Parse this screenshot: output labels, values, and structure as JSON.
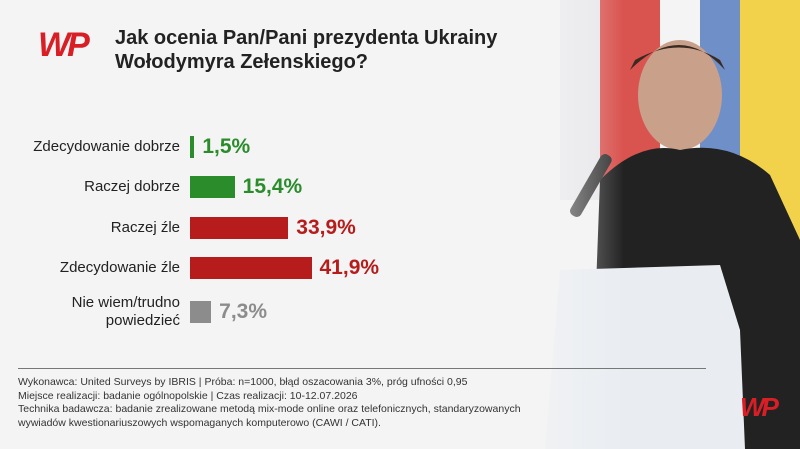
{
  "chart_data": {
    "type": "bar",
    "orientation": "horizontal",
    "title": "Jak ocenia Pan/Pani prezydenta Ukrainy Wołodymyra Zełenskiego?",
    "categories": [
      "Zdecydowanie dobrze",
      "Raczej dobrze",
      "Raczej źle",
      "Zdecydowanie źle",
      "Nie wiem/trudno powiedzieć"
    ],
    "values": [
      1.5,
      15.4,
      33.9,
      41.9,
      7.3
    ],
    "value_labels": [
      "1,5%",
      "15,4%",
      "33,9%",
      "41,9%",
      "7,3%"
    ],
    "colors": [
      "#2a8c2a",
      "#2a8c2a",
      "#b71c1c",
      "#b71c1c",
      "#8c8c8c"
    ]
  },
  "logo": "WP",
  "footnote": [
    "Wykonawca: United Surveys by IBRIS | Próba: n=1000, błąd oszacowania 3%, próg ufności 0,95",
    "Miejsce realizacji: badanie ogólnopolskie | Czas realizacji: 10-12.07.2026",
    "Technika badawcza: badanie zrealizowane metodą mix-mode online oraz telefonicznych, standaryzowanych",
    "wywiadów kwestionariuszowych wspomaganych komputerowo (CAWI / CATI)."
  ]
}
